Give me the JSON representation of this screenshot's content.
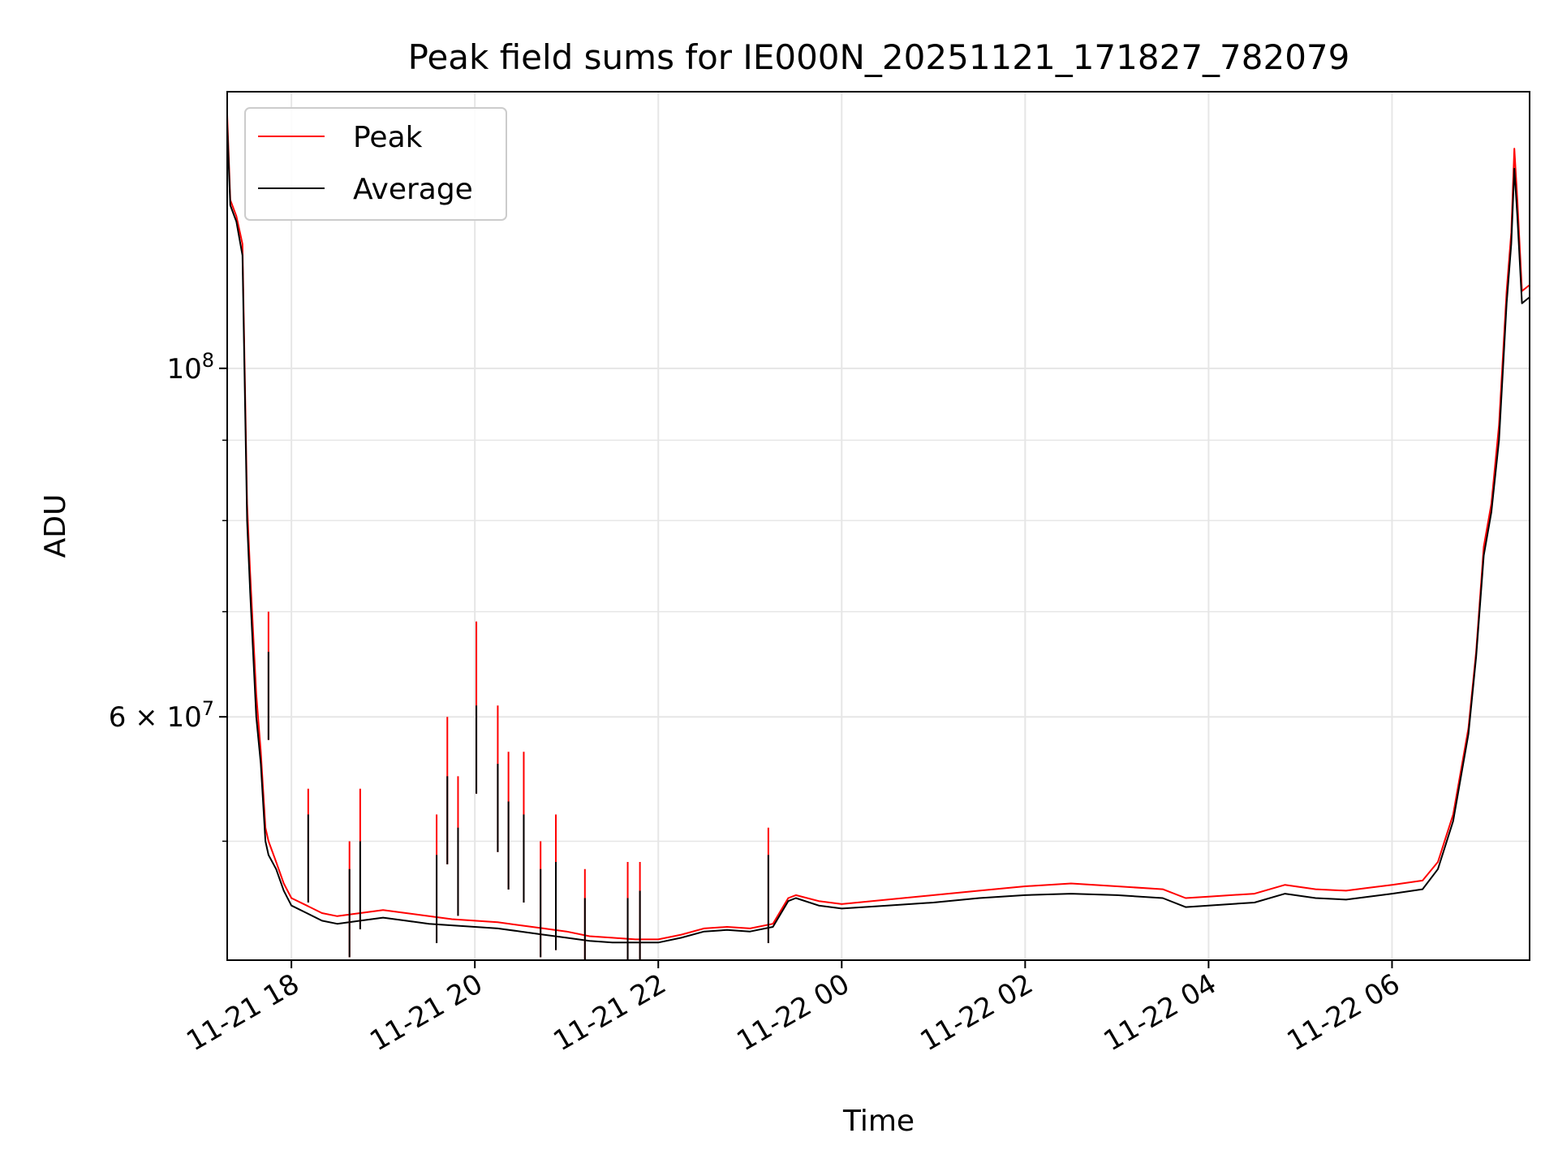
{
  "chart_data": {
    "type": "line",
    "title": "Peak field sums for IE000N_20251121_171827_782079",
    "xlabel": "Time",
    "ylabel": "ADU",
    "y_scale": "log",
    "grid": true,
    "legend_position": "upper-left",
    "xlim": [
      "2025-11-21T17:18",
      "2025-11-22T07:30"
    ],
    "ylim": [
      42000000,
      150000000
    ],
    "x_ticks": [
      {
        "t": "2025-11-21T18:00",
        "label": "11-21 18"
      },
      {
        "t": "2025-11-21T20:00",
        "label": "11-21 20"
      },
      {
        "t": "2025-11-21T22:00",
        "label": "11-21 22"
      },
      {
        "t": "2025-11-22T00:00",
        "label": "11-22 00"
      },
      {
        "t": "2025-11-22T02:00",
        "label": "11-22 02"
      },
      {
        "t": "2025-11-22T04:00",
        "label": "11-22 04"
      },
      {
        "t": "2025-11-22T06:00",
        "label": "11-22 06"
      }
    ],
    "y_major_ticks": [
      {
        "value": 100000000,
        "label_base": "10",
        "label_exp": "8"
      },
      {
        "value": 60000000,
        "label_base": "6 × 10",
        "label_exp": "7"
      }
    ],
    "y_minor_ticks": [
      50000000,
      70000000,
      80000000,
      90000000
    ],
    "colors": {
      "peak": "#ff0000",
      "average": "#000000",
      "grid": "#e6e6e6"
    },
    "series": [
      {
        "name": "Peak",
        "x": [
          "2025-11-21T17:18",
          "2025-11-21T17:20",
          "2025-11-21T17:24",
          "2025-11-21T17:28",
          "2025-11-21T17:31",
          "2025-11-21T17:33",
          "2025-11-21T17:37",
          "2025-11-21T17:40",
          "2025-11-21T17:43",
          "2025-11-21T17:45",
          "2025-11-21T17:50",
          "2025-11-21T17:55",
          "2025-11-21T18:00",
          "2025-11-21T18:10",
          "2025-11-21T18:20",
          "2025-11-21T18:30",
          "2025-11-21T18:45",
          "2025-11-21T19:00",
          "2025-11-21T19:15",
          "2025-11-21T19:30",
          "2025-11-21T19:45",
          "2025-11-21T20:00",
          "2025-11-21T20:15",
          "2025-11-21T20:30",
          "2025-11-21T20:45",
          "2025-11-21T21:00",
          "2025-11-21T21:15",
          "2025-11-21T21:30",
          "2025-11-21T21:45",
          "2025-11-21T22:00",
          "2025-11-21T22:15",
          "2025-11-21T22:30",
          "2025-11-21T22:45",
          "2025-11-21T23:00",
          "2025-11-21T23:15",
          "2025-11-21T23:25",
          "2025-11-21T23:30",
          "2025-11-21T23:45",
          "2025-11-22T00:00",
          "2025-11-22T00:30",
          "2025-11-22T01:00",
          "2025-11-22T01:30",
          "2025-11-22T02:00",
          "2025-11-22T02:30",
          "2025-11-22T03:00",
          "2025-11-22T03:30",
          "2025-11-22T03:45",
          "2025-11-22T04:00",
          "2025-11-22T04:30",
          "2025-11-22T04:50",
          "2025-11-22T05:10",
          "2025-11-22T05:30",
          "2025-11-22T05:45",
          "2025-11-22T06:00",
          "2025-11-22T06:20",
          "2025-11-22T06:30",
          "2025-11-22T06:40",
          "2025-11-22T06:50",
          "2025-11-22T06:55",
          "2025-11-22T07:00",
          "2025-11-22T07:05",
          "2025-11-22T07:10",
          "2025-11-22T07:15",
          "2025-11-22T07:18",
          "2025-11-22T07:20",
          "2025-11-22T07:22",
          "2025-11-22T07:25",
          "2025-11-22T07:30"
        ],
        "y": [
          145000000,
          128000000,
          125000000,
          120000000,
          82000000,
          74000000,
          62000000,
          57000000,
          51000000,
          50000000,
          48500000,
          47000000,
          46000000,
          45500000,
          45000000,
          44800000,
          45000000,
          45200000,
          45000000,
          44800000,
          44600000,
          44500000,
          44400000,
          44200000,
          44000000,
          43800000,
          43500000,
          43400000,
          43300000,
          43300000,
          43600000,
          44000000,
          44100000,
          44000000,
          44300000,
          46000000,
          46200000,
          45800000,
          45600000,
          45900000,
          46200000,
          46500000,
          46800000,
          47000000,
          46800000,
          46600000,
          46000000,
          46100000,
          46300000,
          46900000,
          46600000,
          46500000,
          46700000,
          46900000,
          47200000,
          48500000,
          52000000,
          59000000,
          66000000,
          77000000,
          82000000,
          92000000,
          112000000,
          122000000,
          138000000,
          128000000,
          112000000,
          113000000
        ]
      },
      {
        "name": "Average",
        "x": [
          "2025-11-21T17:18",
          "2025-11-21T17:20",
          "2025-11-21T17:24",
          "2025-11-21T17:28",
          "2025-11-21T17:31",
          "2025-11-21T17:33",
          "2025-11-21T17:37",
          "2025-11-21T17:40",
          "2025-11-21T17:43",
          "2025-11-21T17:45",
          "2025-11-21T17:50",
          "2025-11-21T17:55",
          "2025-11-21T18:00",
          "2025-11-21T18:10",
          "2025-11-21T18:20",
          "2025-11-21T18:30",
          "2025-11-21T18:45",
          "2025-11-21T19:00",
          "2025-11-21T19:15",
          "2025-11-21T19:30",
          "2025-11-21T19:45",
          "2025-11-21T20:00",
          "2025-11-21T20:15",
          "2025-11-21T20:30",
          "2025-11-21T20:45",
          "2025-11-21T21:00",
          "2025-11-21T21:15",
          "2025-11-21T21:30",
          "2025-11-21T21:45",
          "2025-11-21T22:00",
          "2025-11-21T22:15",
          "2025-11-21T22:30",
          "2025-11-21T22:45",
          "2025-11-21T23:00",
          "2025-11-21T23:15",
          "2025-11-21T23:25",
          "2025-11-21T23:30",
          "2025-11-21T23:45",
          "2025-11-22T00:00",
          "2025-11-22T00:30",
          "2025-11-22T01:00",
          "2025-11-22T01:30",
          "2025-11-22T02:00",
          "2025-11-22T02:30",
          "2025-11-22T03:00",
          "2025-11-22T03:30",
          "2025-11-22T03:45",
          "2025-11-22T04:00",
          "2025-11-22T04:30",
          "2025-11-22T04:50",
          "2025-11-22T05:10",
          "2025-11-22T05:30",
          "2025-11-22T05:45",
          "2025-11-22T06:00",
          "2025-11-22T06:20",
          "2025-11-22T06:30",
          "2025-11-22T06:40",
          "2025-11-22T06:50",
          "2025-11-22T06:55",
          "2025-11-22T07:00",
          "2025-11-22T07:05",
          "2025-11-22T07:10",
          "2025-11-22T07:15",
          "2025-11-22T07:18",
          "2025-11-22T07:20",
          "2025-11-22T07:22",
          "2025-11-22T07:25",
          "2025-11-22T07:30"
        ],
        "y": [
          143000000,
          127000000,
          124000000,
          118000000,
          80000000,
          72000000,
          60000000,
          56000000,
          50000000,
          49000000,
          48000000,
          46500000,
          45500000,
          45000000,
          44500000,
          44300000,
          44500000,
          44700000,
          44500000,
          44300000,
          44200000,
          44100000,
          44000000,
          43800000,
          43600000,
          43400000,
          43200000,
          43100000,
          43100000,
          43100000,
          43400000,
          43800000,
          43900000,
          43800000,
          44100000,
          45800000,
          46000000,
          45500000,
          45300000,
          45500000,
          45700000,
          46000000,
          46200000,
          46300000,
          46200000,
          46000000,
          45400000,
          45500000,
          45700000,
          46300000,
          46000000,
          45900000,
          46100000,
          46300000,
          46600000,
          48000000,
          51500000,
          58500000,
          65500000,
          76000000,
          81000000,
          90000000,
          110000000,
          120000000,
          134000000,
          125000000,
          110000000,
          111000000
        ]
      }
    ],
    "spikes": {
      "x": [
        "2025-11-21T17:45",
        "2025-11-21T18:11",
        "2025-11-21T18:38",
        "2025-11-21T18:45",
        "2025-11-21T19:35",
        "2025-11-21T19:42",
        "2025-11-21T19:49",
        "2025-11-21T20:01",
        "2025-11-21T20:15",
        "2025-11-21T20:22",
        "2025-11-21T20:32",
        "2025-11-21T20:43",
        "2025-11-21T20:53",
        "2025-11-21T21:12",
        "2025-11-21T21:40",
        "2025-11-21T21:48",
        "2025-11-21T23:12"
      ],
      "peak": [
        70000000,
        54000000,
        50000000,
        54000000,
        52000000,
        60000000,
        55000000,
        69000000,
        61000000,
        57000000,
        57000000,
        50000000,
        52000000,
        48000000,
        48500000,
        48500000,
        51000000
      ],
      "average": [
        66000000,
        52000000,
        48000000,
        50000000,
        49000000,
        55000000,
        51000000,
        61000000,
        56000000,
        53000000,
        52000000,
        48000000,
        48500000,
        46000000,
        46000000,
        46500000,
        49000000
      ]
    }
  }
}
